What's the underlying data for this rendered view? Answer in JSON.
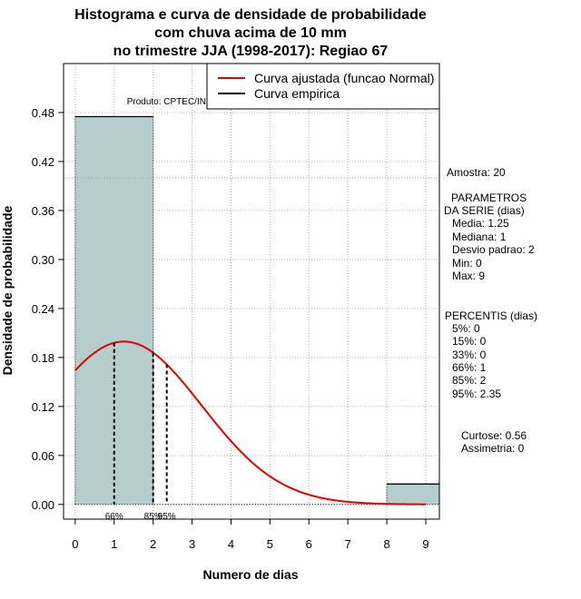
{
  "chart_data": {
    "type": "bar",
    "title_lines": [
      "Histograma e curva de densidade de probabilidade",
      "com chuva acima de 10 mm",
      "no trimestre JJA (1998-2017): Regiao 67"
    ],
    "xlabel": "Numero de dias",
    "ylabel": "Densidade de probabilidade",
    "credit": "Produto: CPTEC/INPE",
    "xlim": [
      -0.3,
      9.35
    ],
    "ylim": [
      -0.018,
      0.54
    ],
    "x_ticks": [
      0,
      1,
      2,
      3,
      4,
      5,
      6,
      7,
      8,
      9
    ],
    "x_tick_labels": [
      "0",
      "1",
      "2",
      "3",
      "4",
      "5",
      "6",
      "7",
      "8",
      "9"
    ],
    "y_ticks": [
      0,
      0.06,
      0.12,
      0.18,
      0.24,
      0.3,
      0.36,
      0.42,
      0.48
    ],
    "y_tick_labels": [
      "0.00",
      "0.06",
      "0.12",
      "0.18",
      "0.24",
      "0.30",
      "0.36",
      "0.42",
      "0.48"
    ],
    "bins": [
      {
        "x0": 0,
        "x1": 2,
        "density": 0.475
      },
      {
        "x0": 2,
        "x1": 8,
        "density": 0.0
      },
      {
        "x0": 8,
        "x1": 9.35,
        "density": 0.025
      }
    ],
    "bar_color": "#b5cdcd",
    "curve": {
      "name": "Curva ajustada (funcao Normal)",
      "color": "#e00000",
      "mean": 1.25,
      "sd": 2,
      "x_range": [
        0,
        9
      ]
    },
    "empirical": {
      "name": "Curva empirica",
      "color": "#000000"
    },
    "reference_line_y": 0.4,
    "percentile_markers": [
      {
        "label": "66%",
        "x": 1.0
      },
      {
        "label": "85%",
        "x": 2.0
      },
      {
        "label": "95%",
        "x": 2.35
      }
    ],
    "legend_position": "top-right",
    "grid": true
  },
  "side_panel": {
    "amostra": "Amostra: 20",
    "params_title_1": "PARAMETROS",
    "params_title_2": "DA SERIE (dias)",
    "params": [
      "Media: 1.25",
      "Mediana: 1",
      "Desvio padrao: 2",
      "Min: 0",
      "Max: 9"
    ],
    "percentis_title": "PERCENTIS (dias)",
    "percentis": [
      "5%: 0",
      "15%: 0",
      "33%: 0",
      "66%: 1",
      "85%: 2",
      "95%: 2.35"
    ],
    "curtose": "Curtose: 0.56",
    "assimetria": "Assimetria: 0"
  }
}
